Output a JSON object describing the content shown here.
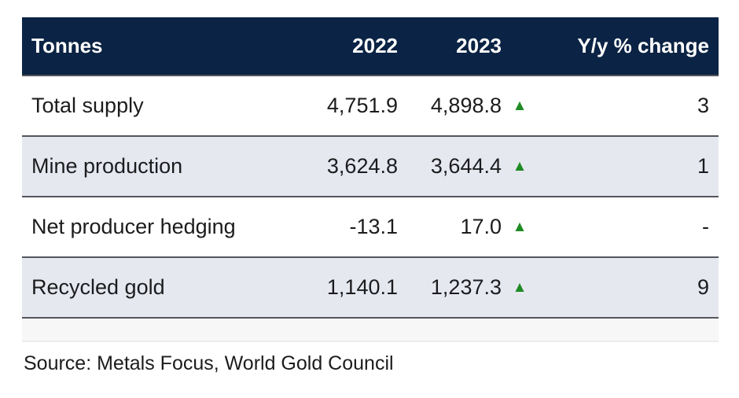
{
  "table": {
    "header": {
      "label": "Tonnes",
      "col_2022": "2022",
      "col_2023": "2023",
      "col_change": "Y/y % change"
    },
    "rows": [
      {
        "label": "Total supply",
        "v2022": "4,751.9",
        "v2023": "4,898.8",
        "trend": "up",
        "change": "3"
      },
      {
        "label": "Mine production",
        "v2022": "3,624.8",
        "v2023": "3,644.4",
        "trend": "up",
        "change": "1"
      },
      {
        "label": "Net producer hedging",
        "v2022": "-13.1",
        "v2023": "17.0",
        "trend": "up",
        "change": "-"
      },
      {
        "label": "Recycled gold",
        "v2022": "1,140.1",
        "v2023": "1,237.3",
        "trend": "up",
        "change": "9"
      }
    ]
  },
  "source": "Source: Metals Focus, World Gold Council",
  "icons": {
    "up_arrow": "▲"
  },
  "colors": {
    "header_bg": "#0b2344",
    "alt_row_bg": "#e6e8f0",
    "arrow_green": "#1f8b24",
    "divider": "#54565c"
  },
  "chart_data": {
    "type": "table",
    "title": "Tonnes",
    "categories": [
      "Total supply",
      "Mine production",
      "Net producer hedging",
      "Recycled gold"
    ],
    "series": [
      {
        "name": "2022",
        "values": [
          4751.9,
          3624.8,
          -13.1,
          1140.1
        ]
      },
      {
        "name": "2023",
        "values": [
          4898.8,
          3644.4,
          17.0,
          1237.3
        ]
      },
      {
        "name": "Y/y % change",
        "values": [
          3,
          1,
          null,
          9
        ]
      }
    ],
    "annotations": [
      "all rows show upward trend arrows",
      "Source: Metals Focus, World Gold Council"
    ]
  }
}
